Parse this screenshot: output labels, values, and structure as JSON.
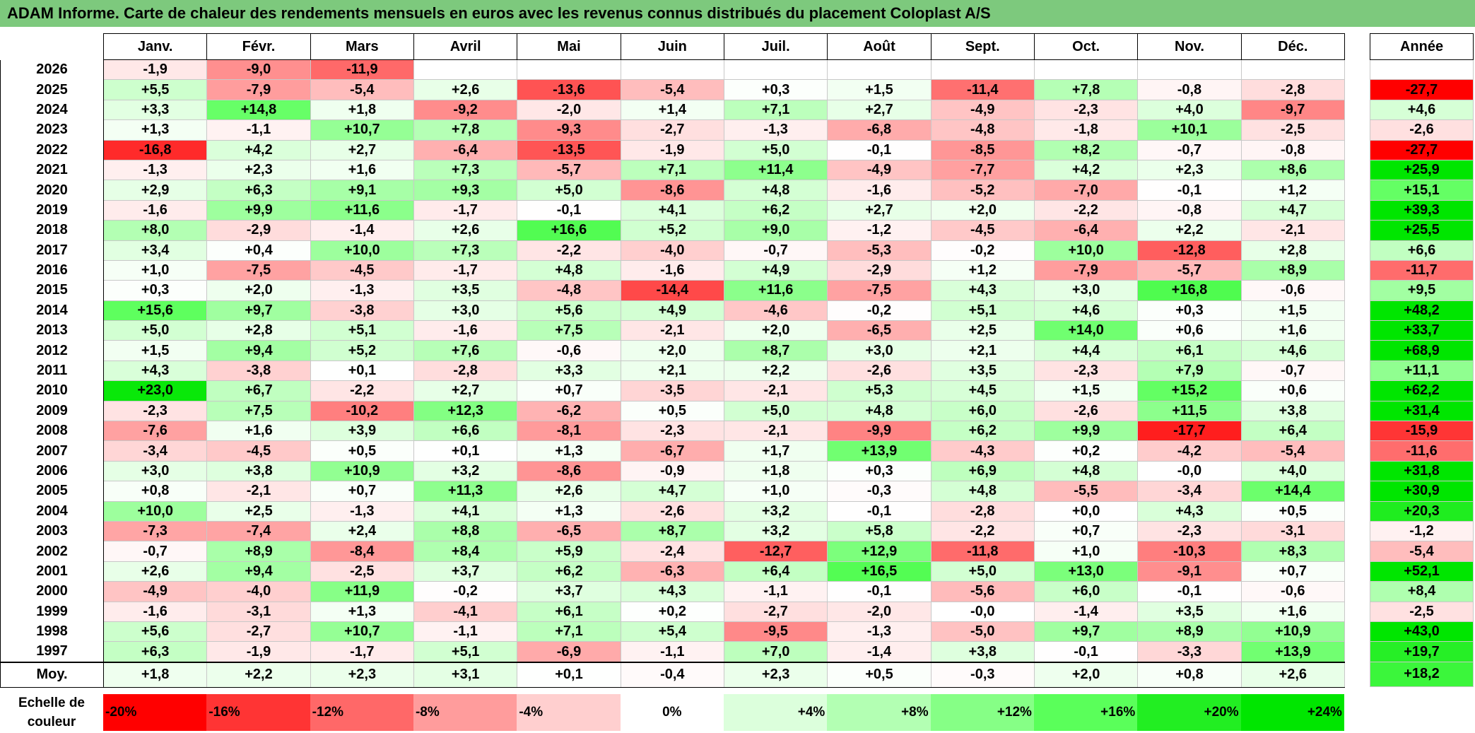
{
  "title": "ADAM Informe. Carte de chaleur des rendements mensuels en euros avec les revenus connus distribués du placement Coloplast A/S",
  "chart_data": {
    "type": "heatmap",
    "columns": [
      "Janv.",
      "Févr.",
      "Mars",
      "Avril",
      "Mai",
      "Juin",
      "Juil.",
      "Août",
      "Sept.",
      "Oct.",
      "Nov.",
      "Déc."
    ],
    "annual_header": "Année",
    "rows": [
      {
        "year": "2026",
        "values": [
          "-1,9",
          "-9,0",
          "-11,9",
          "",
          "",
          "",
          "",
          "",
          "",
          "",
          "",
          ""
        ],
        "annual": ""
      },
      {
        "year": "2025",
        "values": [
          "+5,5",
          "-7,9",
          "-5,4",
          "+2,6",
          "-13,6",
          "-5,4",
          "+0,3",
          "+1,5",
          "-11,4",
          "+7,8",
          "-0,8",
          "-2,8"
        ],
        "annual": "-27,7"
      },
      {
        "year": "2024",
        "values": [
          "+3,3",
          "+14,8",
          "+1,8",
          "-9,2",
          "-2,0",
          "+1,4",
          "+7,1",
          "+2,7",
          "-4,9",
          "-2,3",
          "+4,0",
          "-9,7"
        ],
        "annual": "+4,6"
      },
      {
        "year": "2023",
        "values": [
          "+1,3",
          "-1,1",
          "+10,7",
          "+7,8",
          "-9,3",
          "-2,7",
          "-1,3",
          "-6,8",
          "-4,8",
          "-1,8",
          "+10,1",
          "-2,5"
        ],
        "annual": "-2,6"
      },
      {
        "year": "2022",
        "values": [
          "-16,8",
          "+4,2",
          "+2,7",
          "-6,4",
          "-13,5",
          "-1,9",
          "+5,0",
          "-0,1",
          "-8,5",
          "+8,2",
          "-0,7",
          "-0,8"
        ],
        "annual": "-27,7"
      },
      {
        "year": "2021",
        "values": [
          "-1,3",
          "+2,3",
          "+1,6",
          "+7,3",
          "-5,7",
          "+7,1",
          "+11,4",
          "-4,9",
          "-7,7",
          "+4,2",
          "+2,3",
          "+8,6"
        ],
        "annual": "+25,9"
      },
      {
        "year": "2020",
        "values": [
          "+2,9",
          "+6,3",
          "+9,1",
          "+9,3",
          "+5,0",
          "-8,6",
          "+4,8",
          "-1,6",
          "-5,2",
          "-7,0",
          "-0,1",
          "+1,2"
        ],
        "annual": "+15,1"
      },
      {
        "year": "2019",
        "values": [
          "-1,6",
          "+9,9",
          "+11,6",
          "-1,7",
          "-0,1",
          "+4,1",
          "+6,2",
          "+2,7",
          "+2,0",
          "-2,2",
          "-0,8",
          "+4,7"
        ],
        "annual": "+39,3"
      },
      {
        "year": "2018",
        "values": [
          "+8,0",
          "-2,9",
          "-1,4",
          "+2,6",
          "+16,6",
          "+5,2",
          "+9,0",
          "-1,2",
          "-4,5",
          "-6,4",
          "+2,2",
          "-2,1"
        ],
        "annual": "+25,5"
      },
      {
        "year": "2017",
        "values": [
          "+3,4",
          "+0,4",
          "+10,0",
          "+7,3",
          "-2,2",
          "-4,0",
          "-0,7",
          "-5,3",
          "-0,2",
          "+10,0",
          "-12,8",
          "+2,8"
        ],
        "annual": "+6,6"
      },
      {
        "year": "2016",
        "values": [
          "+1,0",
          "-7,5",
          "-4,5",
          "-1,7",
          "+4,8",
          "-1,6",
          "+4,9",
          "-2,9",
          "+1,2",
          "-7,9",
          "-5,7",
          "+8,9"
        ],
        "annual": "-11,7"
      },
      {
        "year": "2015",
        "values": [
          "+0,3",
          "+2,0",
          "-1,3",
          "+3,5",
          "-4,8",
          "-14,4",
          "+11,6",
          "-7,5",
          "+4,3",
          "+3,0",
          "+16,8",
          "-0,6"
        ],
        "annual": "+9,5"
      },
      {
        "year": "2014",
        "values": [
          "+15,6",
          "+9,7",
          "-3,8",
          "+3,0",
          "+5,6",
          "+4,9",
          "-4,6",
          "-0,2",
          "+5,1",
          "+4,6",
          "+0,3",
          "+1,5"
        ],
        "annual": "+48,2"
      },
      {
        "year": "2013",
        "values": [
          "+5,0",
          "+2,8",
          "+5,1",
          "-1,6",
          "+7,5",
          "-2,1",
          "+2,0",
          "-6,5",
          "+2,5",
          "+14,0",
          "+0,6",
          "+1,6"
        ],
        "annual": "+33,7"
      },
      {
        "year": "2012",
        "values": [
          "+1,5",
          "+9,4",
          "+5,2",
          "+7,6",
          "-0,6",
          "+2,0",
          "+8,7",
          "+3,0",
          "+2,1",
          "+4,4",
          "+6,1",
          "+4,6"
        ],
        "annual": "+68,9"
      },
      {
        "year": "2011",
        "values": [
          "+4,3",
          "-3,8",
          "+0,1",
          "-2,8",
          "+3,3",
          "+2,1",
          "+2,2",
          "-2,6",
          "+3,5",
          "-2,3",
          "+7,9",
          "-0,7"
        ],
        "annual": "+11,1"
      },
      {
        "year": "2010",
        "values": [
          "+23,0",
          "+6,7",
          "-2,2",
          "+2,7",
          "+0,7",
          "-3,5",
          "-2,1",
          "+5,3",
          "+4,5",
          "+1,5",
          "+15,2",
          "+0,6"
        ],
        "annual": "+62,2"
      },
      {
        "year": "2009",
        "values": [
          "-2,3",
          "+7,5",
          "-10,2",
          "+12,3",
          "-6,2",
          "+0,5",
          "+5,0",
          "+4,8",
          "+6,0",
          "-2,6",
          "+11,5",
          "+3,8"
        ],
        "annual": "+31,4"
      },
      {
        "year": "2008",
        "values": [
          "-7,6",
          "+1,6",
          "+3,9",
          "+6,6",
          "-8,1",
          "-2,3",
          "-2,1",
          "-9,9",
          "+6,2",
          "+9,9",
          "-17,7",
          "+6,4"
        ],
        "annual": "-15,9"
      },
      {
        "year": "2007",
        "values": [
          "-3,4",
          "-4,5",
          "+0,5",
          "+0,1",
          "+1,3",
          "-6,7",
          "+1,7",
          "+13,9",
          "-4,3",
          "+0,2",
          "-4,2",
          "-5,4"
        ],
        "annual": "-11,6"
      },
      {
        "year": "2006",
        "values": [
          "+3,0",
          "+3,8",
          "+10,9",
          "+3,2",
          "-8,6",
          "-0,9",
          "+1,8",
          "+0,3",
          "+6,9",
          "+4,8",
          "-0,0",
          "+4,0"
        ],
        "annual": "+31,8"
      },
      {
        "year": "2005",
        "values": [
          "+0,8",
          "-2,1",
          "+0,7",
          "+11,3",
          "+2,6",
          "+4,7",
          "+1,0",
          "-0,3",
          "+4,8",
          "-5,5",
          "-3,4",
          "+14,4"
        ],
        "annual": "+30,9"
      },
      {
        "year": "2004",
        "values": [
          "+10,0",
          "+2,5",
          "-1,3",
          "+4,1",
          "+1,3",
          "-2,6",
          "+3,2",
          "-0,1",
          "-2,8",
          "+0,0",
          "+4,3",
          "+0,5"
        ],
        "annual": "+20,3"
      },
      {
        "year": "2003",
        "values": [
          "-7,3",
          "-7,4",
          "+2,4",
          "+8,8",
          "-6,5",
          "+8,7",
          "+3,2",
          "+5,8",
          "-2,2",
          "+0,7",
          "-2,3",
          "-3,1"
        ],
        "annual": "-1,2"
      },
      {
        "year": "2002",
        "values": [
          "-0,7",
          "+8,9",
          "-8,4",
          "+8,4",
          "+5,9",
          "-2,4",
          "-12,7",
          "+12,9",
          "-11,8",
          "+1,0",
          "-10,3",
          "+8,3"
        ],
        "annual": "-5,4"
      },
      {
        "year": "2001",
        "values": [
          "+2,6",
          "+9,4",
          "-2,5",
          "+3,7",
          "+6,2",
          "-6,3",
          "+6,4",
          "+16,5",
          "+5,0",
          "+13,0",
          "-9,1",
          "+0,7"
        ],
        "annual": "+52,1"
      },
      {
        "year": "2000",
        "values": [
          "-4,9",
          "-4,0",
          "+11,9",
          "-0,2",
          "+3,7",
          "+4,3",
          "-1,1",
          "-0,1",
          "-5,6",
          "+6,0",
          "-0,1",
          "-0,6"
        ],
        "annual": "+8,4"
      },
      {
        "year": "1999",
        "values": [
          "-1,6",
          "-3,1",
          "+1,3",
          "-4,1",
          "+6,1",
          "+0,2",
          "-2,7",
          "-2,0",
          "-0,0",
          "-1,4",
          "+3,5",
          "+1,6"
        ],
        "annual": "-2,5"
      },
      {
        "year": "1998",
        "values": [
          "+5,6",
          "-2,7",
          "+10,7",
          "-1,1",
          "+7,1",
          "+5,4",
          "-9,5",
          "-1,3",
          "-5,0",
          "+9,7",
          "+8,9",
          "+10,9"
        ],
        "annual": "+43,0"
      },
      {
        "year": "1997",
        "values": [
          "+6,3",
          "-1,9",
          "-1,7",
          "+5,1",
          "-6,9",
          "-1,1",
          "+7,0",
          "-1,4",
          "+3,8",
          "-0,1",
          "-3,3",
          "+13,9"
        ],
        "annual": "+19,7"
      }
    ],
    "average": {
      "label": "Moy.",
      "values": [
        "+1,8",
        "+2,2",
        "+2,3",
        "+3,1",
        "+0,1",
        "-0,4",
        "+2,3",
        "+0,5",
        "-0,3",
        "+2,0",
        "+0,8",
        "+2,6"
      ],
      "annual": "+18,2"
    },
    "scale": {
      "label_line1": "Echelle de",
      "label_line2": "couleur",
      "steps": [
        {
          "label": "-20%",
          "value": -20,
          "color": "#ff0000"
        },
        {
          "label": "-16%",
          "value": -16,
          "color": "#ff3434"
        },
        {
          "label": "-12%",
          "value": -12,
          "color": "#ff6868"
        },
        {
          "label": "-8%",
          "value": -8,
          "color": "#ff9c9c"
        },
        {
          "label": "-4%",
          "value": -4,
          "color": "#ffcfcf"
        },
        {
          "label": "0%",
          "value": 0,
          "color": "#ffffff"
        },
        {
          "label": "+4%",
          "value": 4,
          "color": "#dcffdc"
        },
        {
          "label": "+8%",
          "value": 8,
          "color": "#b3ffb3"
        },
        {
          "label": "+12%",
          "value": 12,
          "color": "#86ff86"
        },
        {
          "label": "+16%",
          "value": 16,
          "color": "#5aff5a"
        },
        {
          "label": "+20%",
          "value": 20,
          "color": "#22ee22"
        },
        {
          "label": "+24%",
          "value": 24,
          "color": "#00e600"
        }
      ]
    }
  }
}
